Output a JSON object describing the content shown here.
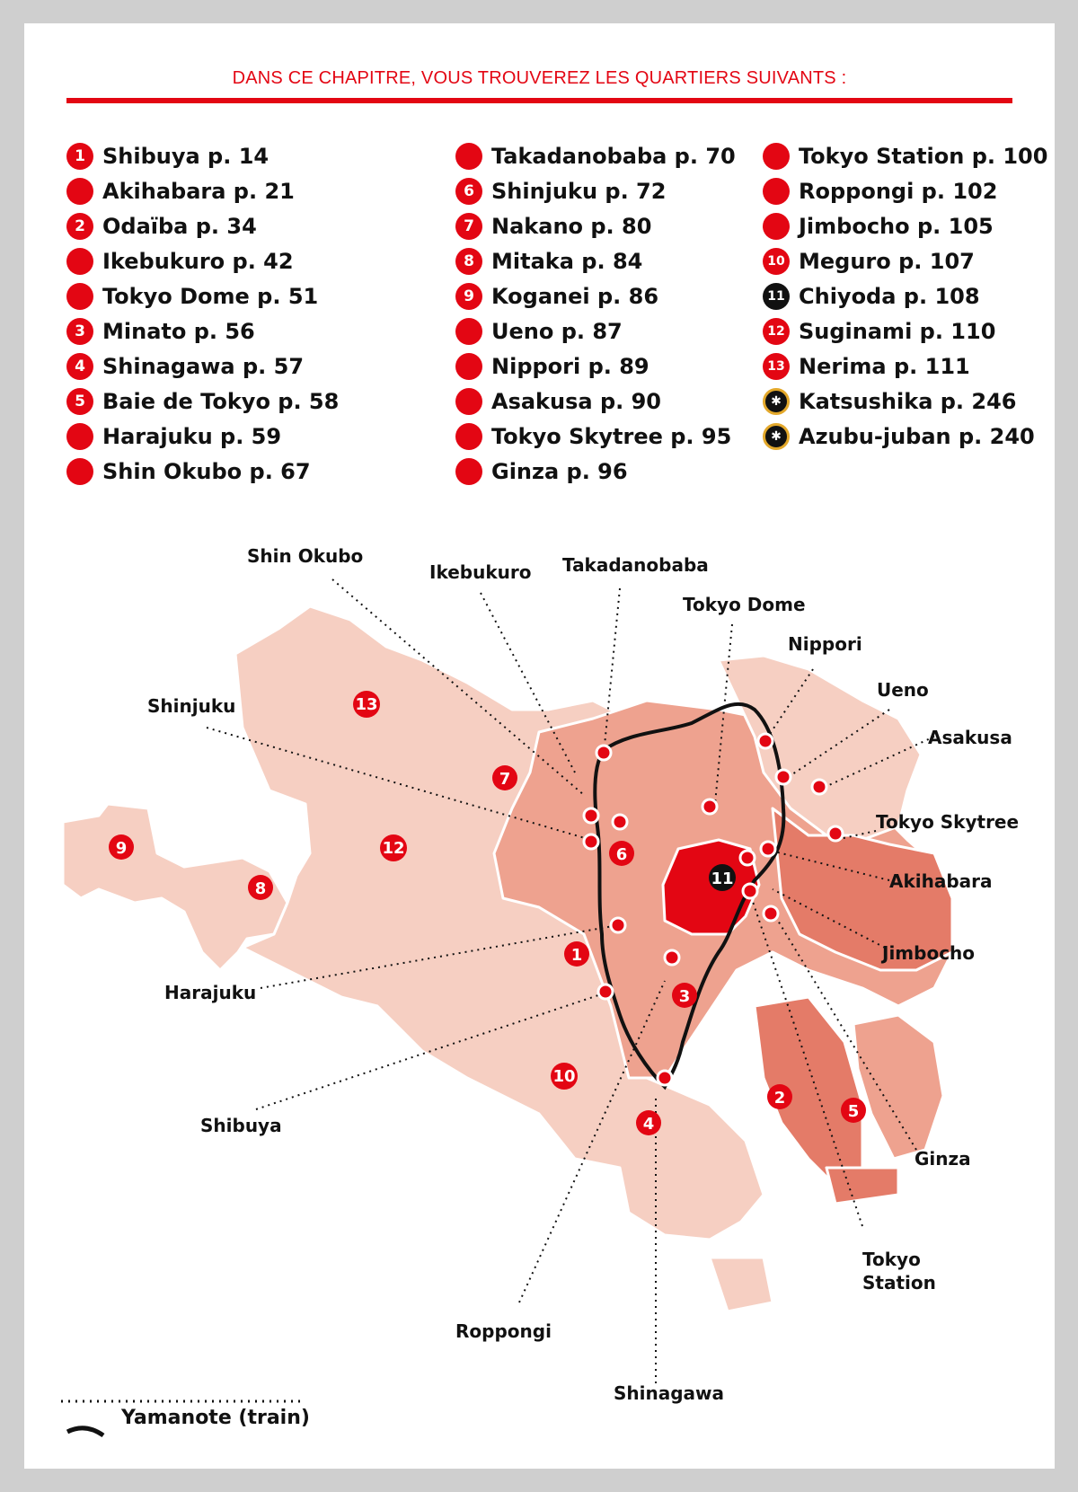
{
  "heading": "DANS CE CHAPITRE, VOUS TROUVEREZ LES QUARTIERS SUIVANTS :",
  "colors": {
    "accent": "#e30613",
    "dark": "#111111",
    "land_light": "#f6cfc2",
    "land_mid": "#eea28f",
    "land_dark": "#e47b68"
  },
  "columns": [
    [
      {
        "num": "1",
        "label": "Shibuya p. 14"
      },
      {
        "num": "",
        "label": "Akihabara p. 21"
      },
      {
        "num": "2",
        "label": "Odaïba p. 34"
      },
      {
        "num": "",
        "label": "Ikebukuro p. 42"
      },
      {
        "num": "",
        "label": "Tokyo Dome p. 51"
      },
      {
        "num": "3",
        "label": "Minato p. 56"
      },
      {
        "num": "4",
        "label": "Shinagawa p. 57"
      },
      {
        "num": "5",
        "label": "Baie de Tokyo p. 58"
      },
      {
        "num": "",
        "label": "Harajuku p. 59"
      },
      {
        "num": "",
        "label": "Shin Okubo p. 67"
      }
    ],
    [
      {
        "num": "",
        "label": "Takadanobaba p. 70"
      },
      {
        "num": "6",
        "label": "Shinjuku p. 72"
      },
      {
        "num": "7",
        "label": "Nakano p. 80"
      },
      {
        "num": "8",
        "label": "Mitaka p. 84"
      },
      {
        "num": "9",
        "label": "Koganei p. 86"
      },
      {
        "num": "",
        "label": "Ueno p. 87"
      },
      {
        "num": "",
        "label": "Nippori p. 89"
      },
      {
        "num": "",
        "label": "Asakusa p. 90"
      },
      {
        "num": "",
        "label": "Tokyo Skytree p. 95"
      },
      {
        "num": "",
        "label": "Ginza p. 96"
      }
    ],
    [
      {
        "num": "",
        "label": "Tokyo Station p. 100"
      },
      {
        "num": "",
        "label": "Roppongi p. 102"
      },
      {
        "num": "",
        "label": "Jimbocho p. 105"
      },
      {
        "num": "10",
        "label": "Meguro p. 107"
      },
      {
        "num": "11",
        "label": "Chiyoda p. 108",
        "style": "dark"
      },
      {
        "num": "12",
        "label": "Suginami p. 110"
      },
      {
        "num": "13",
        "label": "Nerima p. 111"
      },
      {
        "num": "",
        "label": "Katsushika p. 246",
        "style": "compass"
      },
      {
        "num": "",
        "label": "Azubu-juban p. 240",
        "style": "compass"
      }
    ]
  ],
  "map_labels": {
    "shin_okubo": "Shin Okubo",
    "ikebukuro": "Ikebukuro",
    "takadanobaba": "Takadanobaba",
    "tokyo_dome": "Tokyo Dome",
    "nippori": "Nippori",
    "ueno": "Ueno",
    "asakusa": "Asakusa",
    "shinjuku": "Shinjuku",
    "tokyo_skytree": "Tokyo Skytree",
    "akihabara": "Akihabara",
    "jimbocho": "Jimbocho",
    "harajuku": "Harajuku",
    "shibuya": "Shibuya",
    "ginza": "Ginza",
    "tokyo_station_1": "Tokyo",
    "tokyo_station_2": "Station",
    "roppongi": "Roppongi",
    "shinagawa": "Shinagawa"
  },
  "district_numbers": [
    "1",
    "2",
    "3",
    "4",
    "5",
    "6",
    "7",
    "8",
    "9",
    "10",
    "11",
    "12",
    "13"
  ],
  "legend": {
    "train": "Yamanote (train)"
  }
}
